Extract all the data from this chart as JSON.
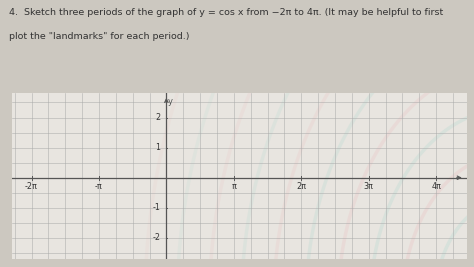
{
  "title_line1": "4.  Sketch three periods of the graph of y = cos x from −2π to 4π. (It may be helpful to first",
  "title_line2": "plot the \"landmarks\" for each period.)",
  "xmin": -7.2,
  "xmax": 14.0,
  "ymin": -2.7,
  "ymax": 2.8,
  "ytick_vals": [
    -2,
    -1,
    1,
    2
  ],
  "xtick_labels": [
    "-2π",
    "-π",
    "π",
    "2π",
    "3π",
    "4π"
  ],
  "xtick_values": [
    -6.283185307,
    -3.141592654,
    3.141592654,
    6.283185307,
    9.424777961,
    12.566370614
  ],
  "grid_minor_step_x": 0.7854,
  "grid_minor_step_y": 0.5,
  "bg_color": "#e8e5e0",
  "grid_color": "#aaaaaa",
  "axis_color": "#555555",
  "text_color": "#333333",
  "fig_bg": "#ccc8c0",
  "title_fontsize": 6.8,
  "tick_fontsize": 5.8
}
